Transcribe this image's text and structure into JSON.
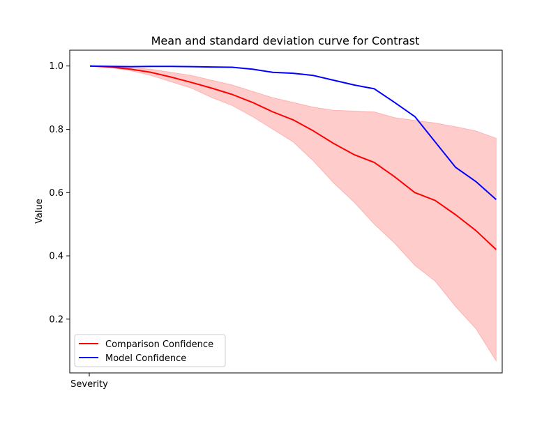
{
  "chart_data": {
    "type": "line",
    "title": "Mean and standard deviation curve for Contrast",
    "xlabel": "",
    "ylabel": "Value",
    "xtick_label": "Severity",
    "xlim": [
      -1,
      20.3
    ],
    "ylim": [
      0.03,
      1.05
    ],
    "yticks": [
      0.2,
      0.4,
      0.6,
      0.8,
      1.0
    ],
    "ytick_labels": [
      "0.2",
      "0.4",
      "0.6",
      "0.8",
      "1.0"
    ],
    "grid": false,
    "legend_position": "lower-left",
    "x": [
      0,
      1,
      2,
      3,
      4,
      5,
      6,
      7,
      8,
      9,
      10,
      11,
      12,
      13,
      14,
      15,
      16,
      17,
      18,
      19,
      20
    ],
    "series": [
      {
        "name": "Comparison Confidence",
        "color": "#ff0000",
        "values": [
          1.0,
          0.997,
          0.99,
          0.98,
          0.965,
          0.948,
          0.93,
          0.91,
          0.885,
          0.855,
          0.83,
          0.795,
          0.755,
          0.72,
          0.695,
          0.65,
          0.6,
          0.575,
          0.53,
          0.48,
          0.42
        ],
        "band_upper": [
          1.0,
          0.999,
          0.995,
          0.99,
          0.98,
          0.97,
          0.955,
          0.94,
          0.92,
          0.9,
          0.885,
          0.87,
          0.86,
          0.858,
          0.855,
          0.837,
          0.828,
          0.82,
          0.808,
          0.795,
          0.772
        ],
        "band_lower": [
          1.0,
          0.995,
          0.985,
          0.97,
          0.95,
          0.93,
          0.9,
          0.875,
          0.84,
          0.8,
          0.76,
          0.7,
          0.63,
          0.57,
          0.5,
          0.44,
          0.37,
          0.32,
          0.24,
          0.17,
          0.068
        ],
        "band_color": "#ff0000",
        "band_opacity": 0.2
      },
      {
        "name": "Model Confidence",
        "color": "#0000ff",
        "values": [
          1.0,
          0.999,
          0.998,
          0.999,
          0.999,
          0.998,
          0.997,
          0.996,
          0.99,
          0.98,
          0.977,
          0.97,
          0.955,
          0.94,
          0.928,
          0.885,
          0.84,
          0.76,
          0.68,
          0.635,
          0.578
        ]
      }
    ]
  }
}
